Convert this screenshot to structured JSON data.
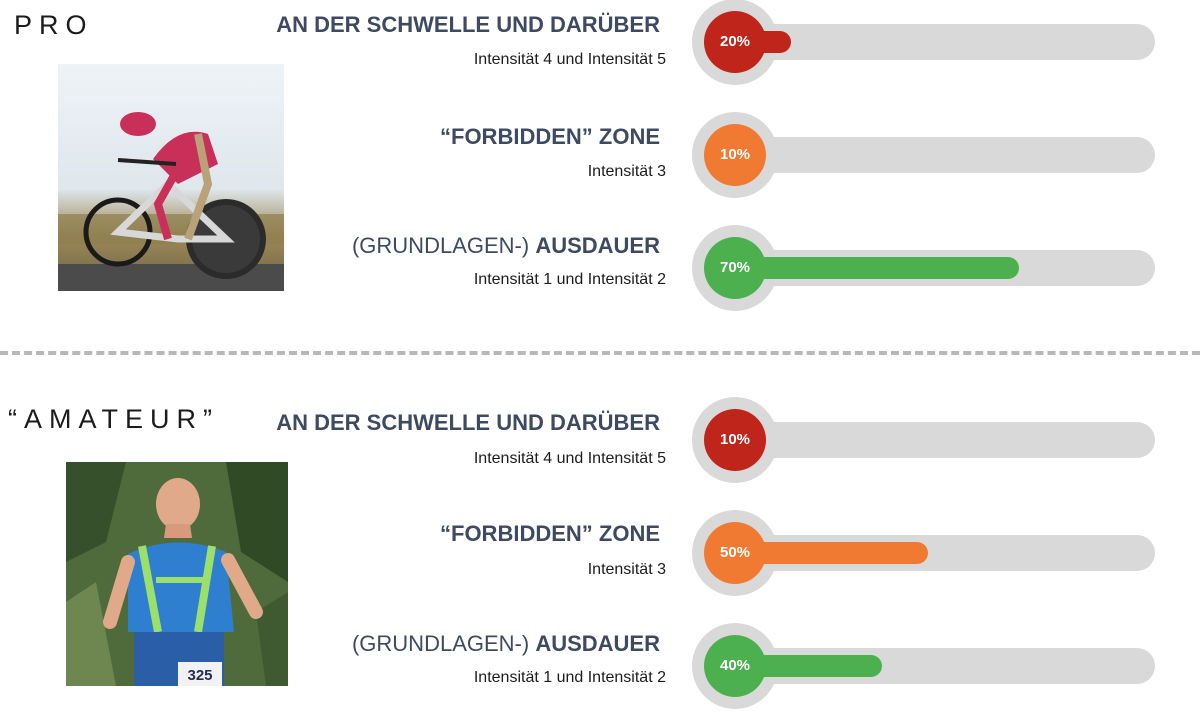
{
  "chart_data": [
    {
      "type": "bar",
      "title": "PRO",
      "categories": [
        {
          "title_light": "",
          "title_bold": "AN DER SCHWELLE UND DARÜBER",
          "subtitle": "Intensität 4 und Intensität 5"
        },
        {
          "title_light": "",
          "title_bold": "“FORBIDDEN” ZONE",
          "subtitle": "Intensität 3"
        },
        {
          "title_light": "(GRUNDLAGEN-) ",
          "title_bold": "AUSDAUER",
          "subtitle": "Intensität 1 und Intensität 2"
        }
      ],
      "values": [
        20,
        10,
        70
      ],
      "labels": [
        "20%",
        "10%",
        "70%"
      ],
      "colors": [
        "#c0251b",
        "#f07a32",
        "#4cb04f"
      ],
      "xlim": [
        0,
        100
      ]
    },
    {
      "type": "bar",
      "title": "“AMATEUR”",
      "categories": [
        {
          "title_light": "",
          "title_bold": "AN DER SCHWELLE UND DARÜBER",
          "subtitle": "Intensität 4 und Intensität 5"
        },
        {
          "title_light": "",
          "title_bold": "“FORBIDDEN” ZONE",
          "subtitle": "Intensität 3"
        },
        {
          "title_light": "(GRUNDLAGEN-) ",
          "title_bold": "AUSDAUER",
          "subtitle": "Intensität 1 und Intensität 2"
        }
      ],
      "values": [
        10,
        50,
        40
      ],
      "labels": [
        "10%",
        "50%",
        "40%"
      ],
      "colors": [
        "#c0251b",
        "#f07a32",
        "#4cb04f"
      ],
      "xlim": [
        0,
        100
      ]
    }
  ],
  "photos": {
    "pro": "cyclist-photo",
    "amateur": "runner-photo"
  },
  "runner_bib": "325"
}
